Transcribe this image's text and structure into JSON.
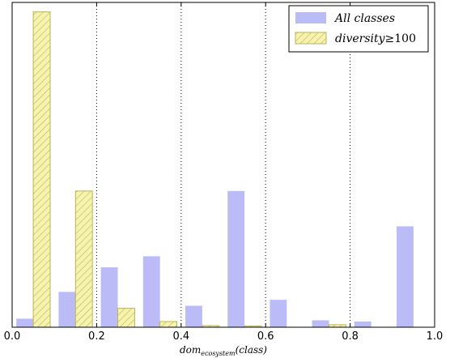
{
  "chart_data": {
    "type": "bar",
    "x": [
      0.05,
      0.15,
      0.25,
      0.35,
      0.45,
      0.55,
      0.65,
      0.75,
      0.85,
      0.95
    ],
    "series": [
      {
        "name": "All classes",
        "color": "#bbbbf7",
        "values": [
          0.027,
          0.112,
          0.19,
          0.225,
          0.068,
          0.432,
          0.087,
          0.022,
          0.018,
          0.32
        ]
      },
      {
        "name": "diversity≥100",
        "name_parts": {
          "base": "diversity",
          "op": "≥",
          "num": "100"
        },
        "color": "#f6f3ae",
        "hatch_color": "#b8b45a",
        "values": [
          1.0,
          0.432,
          0.06,
          0.018,
          0.005,
          0.004,
          0.0,
          0.008,
          0.0,
          0.0
        ]
      }
    ],
    "xlim": [
      0.0,
      1.0
    ],
    "ylim": [
      0,
      1.03
    ],
    "xticks": [
      0.0,
      0.2,
      0.4,
      0.6,
      0.8,
      1.0
    ],
    "xtick_labels": [
      "0.0",
      "0.2",
      "0.4",
      "0.6",
      "0.8",
      "1.0"
    ],
    "xlabel_parts": {
      "base": "dom",
      "sub": "ecosystem",
      "arg": "(class)"
    },
    "vertical_gridlines": [
      0.2,
      0.4,
      0.6,
      0.8
    ],
    "legend_position": "top-right",
    "y_ticks_shown": false
  }
}
